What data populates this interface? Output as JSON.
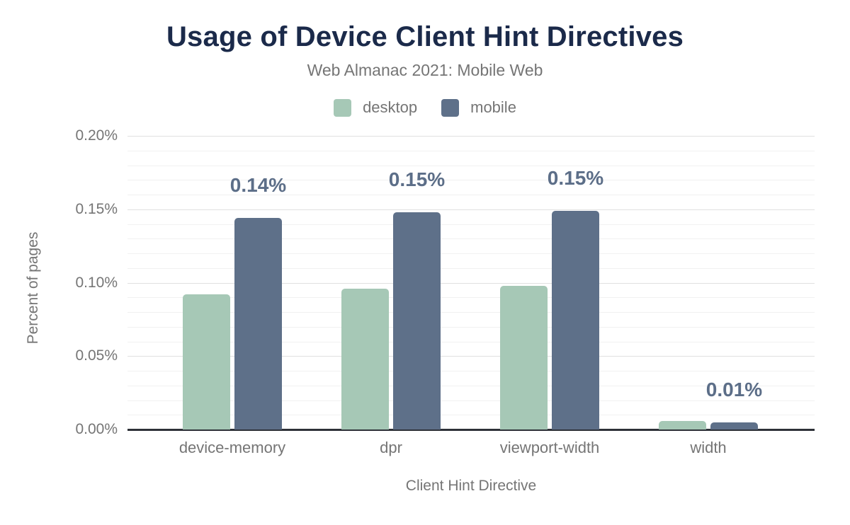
{
  "header": {
    "title": "Usage of Device Client Hint Directives",
    "subtitle": "Web Almanac 2021: Mobile Web"
  },
  "chart_data": {
    "type": "bar",
    "title": "Usage of Device Client Hint Directives",
    "subtitle": "Web Almanac 2021: Mobile Web",
    "categories": [
      "device-memory",
      "dpr",
      "viewport-width",
      "width"
    ],
    "series": [
      {
        "name": "desktop",
        "color": "#a6c8b6",
        "values": [
          0.092,
          0.096,
          0.098,
          0.006
        ]
      },
      {
        "name": "mobile",
        "color": "#5e7089",
        "values": [
          0.144,
          0.148,
          0.149,
          0.005
        ]
      }
    ],
    "value_labels": {
      "series": "mobile",
      "labels": [
        "0.14%",
        "0.15%",
        "0.15%",
        "0.01%"
      ]
    },
    "xlabel": "Client Hint Directive",
    "ylabel": "Percent of pages",
    "ylim": [
      0,
      0.2
    ],
    "unit": "%",
    "y_ticks": [
      {
        "label": "0.00%",
        "value": 0.0
      },
      {
        "label": "0.05%",
        "value": 0.05
      },
      {
        "label": "0.10%",
        "value": 0.1
      },
      {
        "label": "0.15%",
        "value": 0.15
      },
      {
        "label": "0.20%",
        "value": 0.2
      }
    ],
    "minor_grid_step": 0.01,
    "grid": true,
    "legend_position": "top"
  },
  "colors": {
    "title": "#1b2a4a",
    "muted_text": "#757575",
    "axis_line": "#2e3138",
    "grid_minor": "#f1f1f1",
    "grid_major": "#e0e0e0",
    "value_label": "#5c6e88",
    "desktop": "#a6c8b6",
    "mobile": "#5e7089"
  }
}
